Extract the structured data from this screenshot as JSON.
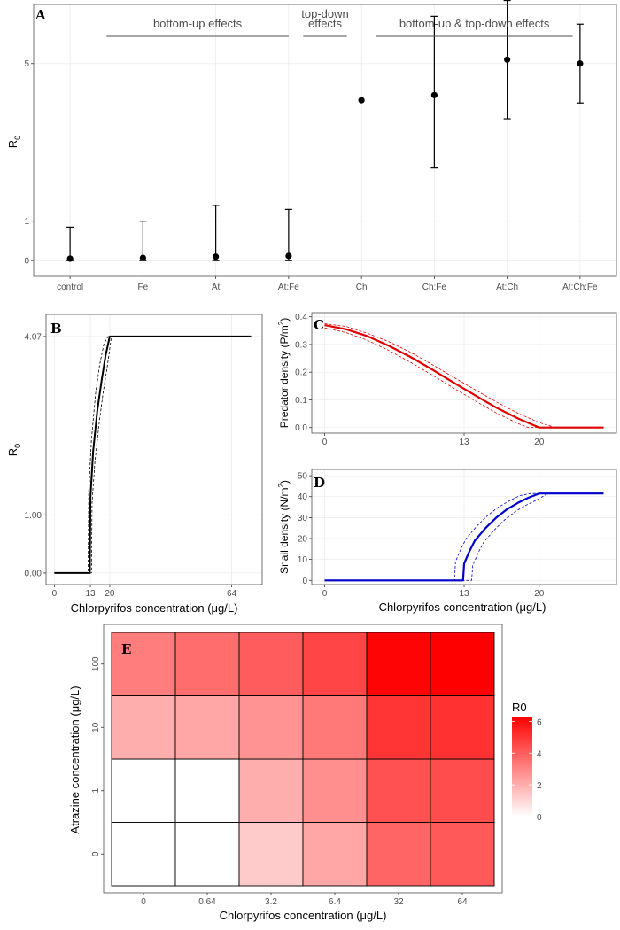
{
  "chart_data": [
    {
      "panel": "A",
      "type": "scatter",
      "ylabel": "R",
      "ylabel_sub": "0",
      "ylim": [
        -0.4,
        6.5
      ],
      "yticks": [
        "0",
        "1",
        "5"
      ],
      "yticks_values": [
        0,
        1,
        5
      ],
      "categories": [
        "control",
        "Fe",
        "At",
        "At:Fe",
        "Ch",
        "Ch:Fe",
        "At:Ch",
        "At:Ch:Fe"
      ],
      "values": [
        0.05,
        0.07,
        0.1,
        0.12,
        4.07,
        4.2,
        5.1,
        5.0
      ],
      "lower": [
        0.0,
        0.0,
        0.0,
        0.0,
        4.07,
        2.35,
        3.6,
        4.0
      ],
      "upper": [
        0.85,
        1.0,
        1.4,
        1.3,
        4.07,
        6.2,
        6.6,
        6.0
      ],
      "groups": [
        {
          "label": "bottom-up effects",
          "from": 1,
          "to": 3.5
        },
        {
          "label_line1": "top-down",
          "label_line2": "effects",
          "from": 3.7,
          "to": 4.3
        },
        {
          "label": "bottom-up & top-down effects",
          "from": 4.7,
          "to": 7.4
        }
      ],
      "grid": true
    },
    {
      "panel": "B",
      "type": "line",
      "xlabel": "Chlorpyrifos concentration (μg/L)",
      "ylabel": "R",
      "ylabel_sub": "0",
      "xlim": [
        -3,
        75
      ],
      "ylim": [
        -0.2,
        4.45
      ],
      "xticks": [
        "0",
        "13",
        "20",
        "64"
      ],
      "xticks_values": [
        0,
        13,
        20,
        64
      ],
      "yticks": [
        "0.00",
        "1.00",
        "4.07"
      ],
      "yticks_values": [
        0,
        1,
        4.07
      ],
      "series": [
        {
          "x": [
            0,
            12.8,
            13,
            14,
            15.5,
            17,
            18.5,
            20,
            71
          ],
          "y": [
            0,
            0,
            1.3,
            2.1,
            2.8,
            3.3,
            3.75,
            4.07,
            4.07
          ]
        },
        {
          "x": [
            0,
            12.2,
            12.4,
            13.4,
            14.9,
            16.4,
            17.9,
            19.4,
            71
          ],
          "y": [
            0,
            0,
            1.4,
            2.3,
            3.1,
            3.6,
            3.95,
            4.07,
            4.07
          ]
        },
        {
          "x": [
            0,
            13.4,
            13.6,
            14.6,
            16.1,
            17.6,
            19.1,
            20.6,
            71
          ],
          "y": [
            0,
            0,
            1.2,
            1.9,
            2.55,
            3.1,
            3.55,
            4.07,
            4.07
          ]
        }
      ],
      "grid": true
    },
    {
      "panel": "C",
      "type": "line",
      "ylabel": "Predator density (P/m",
      "ylabel_sup": "2",
      "ylabel_end": ")",
      "xlim": [
        -1.2,
        27.2
      ],
      "ylim": [
        -0.02,
        0.415
      ],
      "xticks": [
        "0",
        "13",
        "20"
      ],
      "xticks_values": [
        0,
        13,
        20
      ],
      "yticks": [
        "0.0",
        "0.1",
        "0.2",
        "0.3",
        "0.4"
      ],
      "yticks_values": [
        0,
        0.1,
        0.2,
        0.3,
        0.4
      ],
      "color": "#e00000",
      "series": [
        {
          "x": [
            0,
            2,
            4,
            6,
            8,
            10,
            12,
            14,
            16,
            18,
            20,
            26
          ],
          "y": [
            0.37,
            0.355,
            0.33,
            0.295,
            0.255,
            0.21,
            0.163,
            0.117,
            0.072,
            0.033,
            0.0,
            0.0
          ]
        },
        {
          "x": [
            0,
            2,
            4,
            6,
            8,
            10,
            12,
            14,
            16,
            18,
            20,
            21.5,
            26
          ],
          "y": [
            0.375,
            0.365,
            0.34,
            0.31,
            0.272,
            0.228,
            0.182,
            0.137,
            0.093,
            0.052,
            0.018,
            0.0,
            0.0
          ]
        },
        {
          "x": [
            0,
            2,
            4,
            6,
            8,
            10,
            12,
            14,
            16,
            18,
            19,
            26
          ],
          "y": [
            0.36,
            0.343,
            0.315,
            0.278,
            0.236,
            0.19,
            0.143,
            0.097,
            0.053,
            0.015,
            0.0,
            0.0
          ]
        }
      ],
      "grid": true
    },
    {
      "panel": "D",
      "type": "line",
      "xlabel": "Chlorpyrifos concentration (μg/L)",
      "ylabel": "Snail density (N/m",
      "ylabel_sup": "2",
      "ylabel_end": ")",
      "xlim": [
        -1.2,
        27.2
      ],
      "ylim": [
        -2,
        53
      ],
      "xticks": [
        "0",
        "13",
        "20"
      ],
      "xticks_values": [
        0,
        13,
        20
      ],
      "yticks": [
        "0",
        "10",
        "20",
        "30",
        "40",
        "50"
      ],
      "yticks_values": [
        0,
        10,
        20,
        30,
        40,
        50
      ],
      "color": "#0000cc",
      "series": [
        {
          "x": [
            0,
            12.9,
            13,
            13.5,
            14,
            15,
            16,
            17,
            18,
            19,
            20,
            26
          ],
          "y": [
            0,
            0,
            8,
            14,
            19,
            25,
            30,
            34,
            37,
            39.5,
            41.5,
            41.5
          ]
        },
        {
          "x": [
            0,
            12.1,
            12.2,
            12.7,
            13.2,
            14.2,
            15.2,
            16.2,
            17.2,
            18.2,
            19.2,
            26
          ],
          "y": [
            0,
            0,
            9,
            15,
            20,
            26,
            31,
            35,
            38,
            40.5,
            41.5,
            41.5
          ]
        },
        {
          "x": [
            0,
            13.7,
            13.8,
            14.3,
            14.8,
            15.8,
            16.8,
            17.8,
            18.8,
            19.8,
            20.8,
            26
          ],
          "y": [
            0,
            0,
            7,
            13,
            18,
            24,
            29,
            33,
            36,
            38.5,
            41.5,
            41.5
          ]
        }
      ],
      "grid": true
    },
    {
      "panel": "E",
      "type": "heatmap",
      "xlabel": "Chlorpyrifos concentration (μg/L)",
      "ylabel": "Atrazine concentration (μg/L)",
      "x_categories": [
        "0",
        "0.64",
        "3.2",
        "6.4",
        "32",
        "64"
      ],
      "y_categories": [
        "0",
        "1",
        "10",
        "100"
      ],
      "values": [
        [
          0.0,
          0.0,
          1.3,
          2.2,
          3.8,
          4.1
        ],
        [
          0.0,
          0.0,
          2.0,
          2.8,
          4.3,
          4.4
        ],
        [
          2.0,
          2.2,
          2.7,
          3.3,
          5.0,
          5.1
        ],
        [
          3.2,
          3.6,
          4.0,
          4.6,
          6.2,
          6.3
        ]
      ],
      "legend_title": "R0",
      "legend_ticks": [
        "0",
        "2",
        "4",
        "6"
      ],
      "legend_tick_values": [
        0,
        2,
        4,
        6
      ],
      "color_low": "#ffffff",
      "color_high": "#ff0000",
      "legend_placement": "right"
    }
  ]
}
